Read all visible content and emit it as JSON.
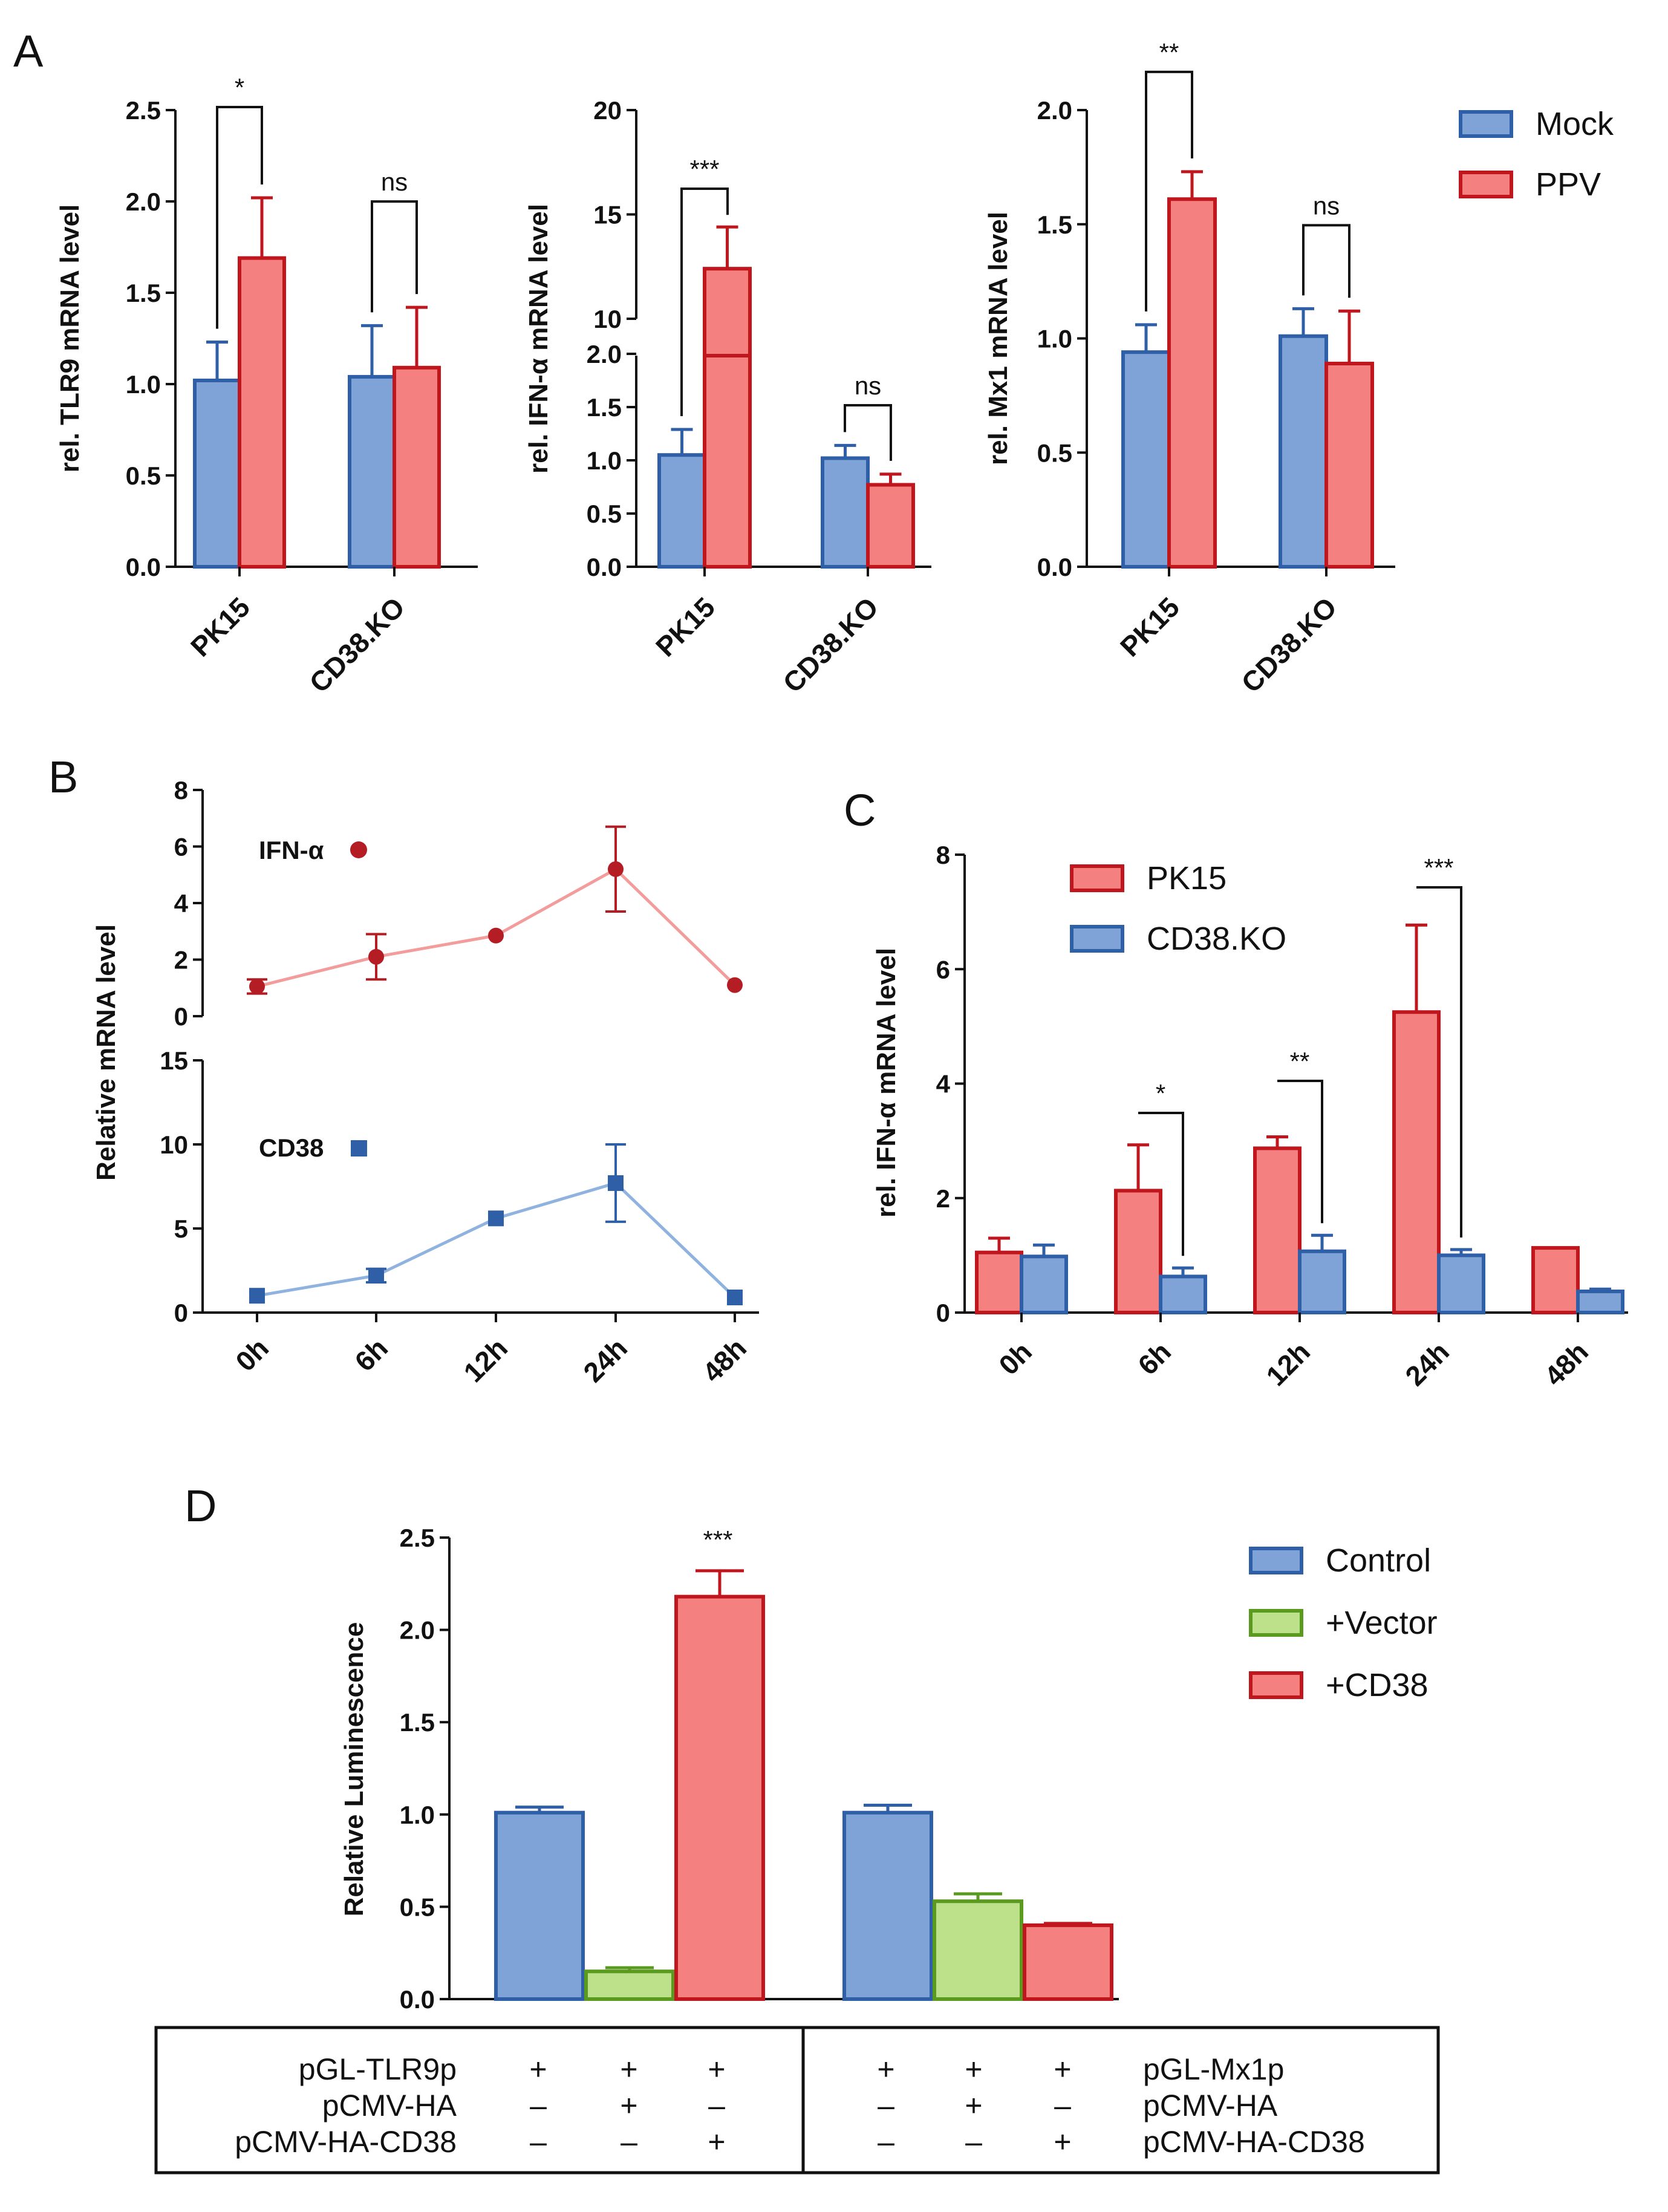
{
  "panel_letters": [
    "A",
    "B",
    "C",
    "D"
  ],
  "colors": {
    "blue_fill": "#7fa3d7",
    "blue_edge": "#2f5fa6",
    "red_fill": "#f48080",
    "red_edge": "#c0171f",
    "green_fill": "#bde08a",
    "green_edge": "#5a9a1f",
    "line_red": "#f29c9c",
    "marker_red": "#b51d25",
    "line_blue": "#8fb3de",
    "marker_blue": "#2f5fa6"
  },
  "chart_data": [
    {
      "id": "A1",
      "type": "bar",
      "panel": "A",
      "ylabel": "rel. TLR9 mRNA level",
      "ylim": [
        0,
        2.5
      ],
      "ticks": [
        "0.0",
        "0.5",
        "1.0",
        "1.5",
        "2.0",
        "2.5"
      ],
      "categories": [
        "PK15",
        "CD38.KO"
      ],
      "series": [
        {
          "name": "Mock",
          "color": "blue",
          "values": [
            1.02,
            1.04
          ],
          "errors": [
            0.21,
            0.28
          ]
        },
        {
          "name": "PPV",
          "color": "red",
          "values": [
            1.69,
            1.09
          ],
          "errors": [
            0.33,
            0.33
          ]
        }
      ],
      "significance": [
        "*",
        "ns"
      ]
    },
    {
      "id": "A2",
      "type": "bar",
      "panel": "A",
      "broken_axis": true,
      "ylabel": "rel. IFN-α mRNA level",
      "lower_ticks": [
        "0.0",
        "0.5",
        "1.0",
        "1.5",
        "2.0"
      ],
      "upper_ticks": [
        "10",
        "15",
        "20"
      ],
      "categories": [
        "PK15",
        "CD38.KO"
      ],
      "series": [
        {
          "name": "Mock",
          "color": "blue",
          "values": [
            1.05,
            1.02
          ],
          "errors": [
            0.24,
            0.12
          ]
        },
        {
          "name": "PPV",
          "color": "red",
          "values": [
            12.4,
            0.77
          ],
          "errors": [
            2.0,
            0.1
          ]
        }
      ],
      "significance": [
        "***",
        "ns"
      ]
    },
    {
      "id": "A3",
      "type": "bar",
      "panel": "A",
      "ylabel": "rel. Mx1 mRNA level",
      "ylim": [
        0,
        2.0
      ],
      "ticks": [
        "0.0",
        "0.5",
        "1.0",
        "1.5",
        "2.0"
      ],
      "categories": [
        "PK15",
        "CD38.KO"
      ],
      "series": [
        {
          "name": "Mock",
          "color": "blue",
          "values": [
            0.94,
            1.01
          ],
          "errors": [
            0.12,
            0.12
          ]
        },
        {
          "name": "PPV",
          "color": "red",
          "values": [
            1.61,
            0.89
          ],
          "errors": [
            0.12,
            0.23
          ]
        }
      ],
      "significance": [
        "**",
        "ns"
      ],
      "legend": [
        "Mock",
        "PPV"
      ]
    },
    {
      "id": "B",
      "type": "line",
      "panel": "B",
      "ylabel": "Relative mRNA level",
      "categories": [
        "0h",
        "6h",
        "12h",
        "24h",
        "48h"
      ],
      "series": [
        {
          "name": "IFN-α",
          "color": "red",
          "ylim": [
            0,
            8
          ],
          "ticks": [
            "0",
            "2",
            "4",
            "6",
            "8"
          ],
          "values": [
            1.05,
            2.1,
            2.85,
            5.2,
            1.1
          ],
          "errors": [
            0.25,
            0.8,
            0,
            1.5,
            0
          ]
        },
        {
          "name": "CD38",
          "color": "blue",
          "ylim": [
            0,
            15
          ],
          "ticks": [
            "0",
            "5",
            "10",
            "15"
          ],
          "values": [
            1.0,
            2.2,
            5.6,
            7.7,
            0.9
          ],
          "errors": [
            0,
            0.4,
            0,
            2.3,
            0
          ]
        }
      ]
    },
    {
      "id": "C",
      "type": "bar",
      "panel": "C",
      "ylabel": "rel. IFN-α mRNA level",
      "ylim": [
        0,
        8
      ],
      "ticks": [
        "0",
        "2",
        "4",
        "6",
        "8"
      ],
      "categories": [
        "0h",
        "6h",
        "12h",
        "24h",
        "48h"
      ],
      "series": [
        {
          "name": "PK15",
          "color": "red",
          "values": [
            1.05,
            2.13,
            2.87,
            5.25,
            1.13
          ],
          "errors": [
            0.25,
            0.8,
            0.2,
            1.52,
            0
          ]
        },
        {
          "name": "CD38.KO",
          "color": "blue",
          "values": [
            0.98,
            0.63,
            1.07,
            1.0,
            0.37
          ],
          "errors": [
            0.2,
            0.15,
            0.28,
            0.1,
            0.04
          ]
        }
      ],
      "significance": [
        "*",
        "**",
        "***"
      ],
      "legend": [
        "PK15",
        "CD38.KO"
      ]
    },
    {
      "id": "D",
      "type": "bar",
      "panel": "D",
      "ylabel": "Relative Luminescence",
      "ylim": [
        0,
        2.5
      ],
      "ticks": [
        "0.0",
        "0.5",
        "1.0",
        "1.5",
        "2.0",
        "2.5"
      ],
      "groups": [
        "TLR9p",
        "Mx1p"
      ],
      "series": [
        {
          "name": "Control",
          "color": "blue",
          "values": [
            1.01,
            1.01
          ],
          "errors": [
            0.03,
            0.04
          ]
        },
        {
          "name": "+Vector",
          "color": "green",
          "values": [
            0.15,
            0.53
          ],
          "errors": [
            0.02,
            0.04
          ]
        },
        {
          "name": "+CD38",
          "color": "red",
          "values": [
            2.18,
            0.4
          ],
          "errors": [
            0.14,
            0.01
          ]
        }
      ],
      "significance": [
        "***"
      ],
      "legend": [
        "Control",
        "+Vector",
        "+CD38"
      ],
      "table": {
        "left_rows": [
          "pGL-TLR9p",
          "pCMV-HA",
          "pCMV-HA-CD38"
        ],
        "right_rows": [
          "pGL-Mx1p",
          "pCMV-HA",
          "pCMV-HA-CD38"
        ],
        "left_marks": [
          [
            "+",
            "+",
            "+"
          ],
          [
            "–",
            "+",
            "–"
          ],
          [
            "–",
            "–",
            "+"
          ]
        ],
        "right_marks": [
          [
            "+",
            "+",
            "+"
          ],
          [
            "–",
            "+",
            "–"
          ],
          [
            "–",
            "–",
            "+"
          ]
        ]
      }
    }
  ]
}
